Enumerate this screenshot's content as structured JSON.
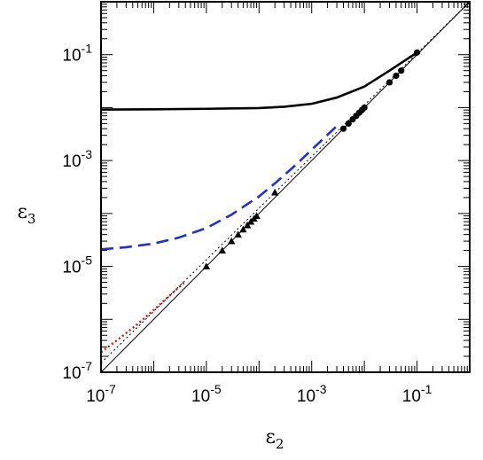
{
  "chart_data": {
    "type": "line",
    "xscale": "log",
    "yscale": "log",
    "xlim": [
      1e-07,
      1
    ],
    "ylim": [
      1e-07,
      1
    ],
    "xlabel": "ε",
    "xlabel_sub": "2",
    "ylabel": "ε",
    "ylabel_sub": "3",
    "x_ticks": [
      {
        "value": 1e-07,
        "base": "10",
        "exp": "-7"
      },
      {
        "value": 1e-05,
        "base": "10",
        "exp": "-5"
      },
      {
        "value": 0.001,
        "base": "10",
        "exp": "-3"
      },
      {
        "value": 0.1,
        "base": "10",
        "exp": "-1"
      }
    ],
    "y_ticks": [
      {
        "value": 1e-07,
        "base": "10",
        "exp": "-7"
      },
      {
        "value": 1e-05,
        "base": "10",
        "exp": "-5"
      },
      {
        "value": 0.001,
        "base": "10",
        "exp": "-3"
      },
      {
        "value": 0.1,
        "base": "10",
        "exp": "-1"
      }
    ],
    "grid": false,
    "legend": "none",
    "series": [
      {
        "style": "solid-thick",
        "color": "#000000",
        "x": [
          1e-07,
          1e-06,
          1e-05,
          0.0001,
          0.0003,
          0.001,
          0.003,
          0.01,
          0.03,
          0.1
        ],
        "y": [
          0.0092,
          0.0093,
          0.0095,
          0.0098,
          0.0104,
          0.0118,
          0.0155,
          0.025,
          0.05,
          0.11
        ]
      },
      {
        "style": "dashed",
        "color": "#1f2fd0",
        "x": [
          1e-07,
          3e-07,
          1e-06,
          3e-06,
          1e-05,
          3e-05,
          0.0001,
          0.0002,
          0.0005,
          0.001,
          0.003
        ],
        "y": [
          2.1e-05,
          2.3e-05,
          2.7e-05,
          3.5e-05,
          5.3e-05,
          9.5e-05,
          0.00021,
          0.00037,
          0.00083,
          0.0016,
          0.0045
        ]
      },
      {
        "style": "dotted",
        "color": "#e01010",
        "x": [
          1e-07,
          2e-07,
          5e-07,
          1e-06,
          2e-06,
          4e-06
        ],
        "y": [
          2.4e-07,
          4e-07,
          8.2e-07,
          1.5e-06,
          2.8e-06,
          5.2e-06
        ]
      },
      {
        "style": "solid-thin",
        "color": "#000000",
        "x": [
          1e-07,
          1
        ],
        "y": [
          1e-07,
          1
        ]
      },
      {
        "style": "dotted-thin",
        "color": "#000000",
        "x": [
          1e-07,
          1
        ],
        "y": [
          1.5e-07,
          1.5
        ]
      },
      {
        "style": "markers",
        "marker": "triangle",
        "color": "#000000",
        "x": [
          1e-05,
          2e-05,
          3e-05,
          4e-05,
          5e-05,
          6e-05,
          7e-05,
          8e-05,
          9e-05,
          0.0002
        ],
        "y": [
          1e-05,
          2e-05,
          3e-05,
          4e-05,
          5e-05,
          6e-05,
          7e-05,
          8e-05,
          9e-05,
          0.00025
        ]
      },
      {
        "style": "markers",
        "marker": "circle",
        "color": "#000000",
        "x": [
          0.004,
          0.005,
          0.006,
          0.007,
          0.008,
          0.009,
          0.01,
          0.03,
          0.04,
          0.05,
          0.1
        ],
        "y": [
          0.004,
          0.005,
          0.006,
          0.007,
          0.008,
          0.009,
          0.01,
          0.03,
          0.04,
          0.05,
          0.11
        ]
      }
    ]
  }
}
